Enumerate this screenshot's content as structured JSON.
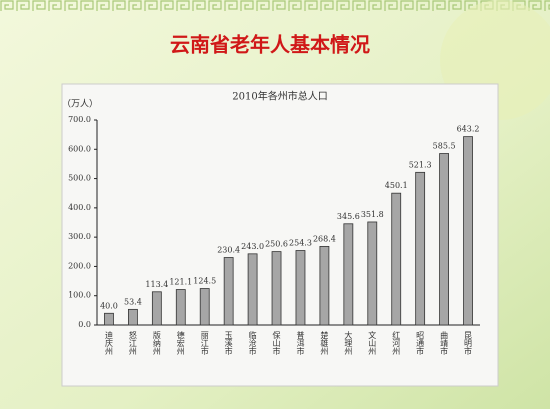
{
  "slide_title": "云南省老年人基本情况",
  "chart_data": {
    "type": "bar",
    "title": "2010年各州市总人口",
    "y_label": "（万人）",
    "categories": [
      "迪庆州",
      "怒江州",
      "版纳州",
      "德宏州",
      "丽江市",
      "玉溪市",
      "临沧市",
      "保山市",
      "普洱市",
      "楚雄州",
      "大理州",
      "文山州",
      "红河州",
      "昭通市",
      "曲靖市",
      "昆明市"
    ],
    "values": [
      40.0,
      53.4,
      113.4,
      121.1,
      124.5,
      230.4,
      243.0,
      250.6,
      254.3,
      268.4,
      345.6,
      351.8,
      450.1,
      521.3,
      585.5,
      643.2
    ],
    "value_labels": [
      "40.0",
      "53.4",
      "113.4",
      "121.1",
      "124.5",
      "230.4",
      "243.0",
      "250.6",
      "254.3",
      "268.4",
      "345.6",
      "351.8",
      "450.1",
      "521.3",
      "585.5",
      "643.2"
    ],
    "color": "#a6a6a6",
    "ylim": [
      0,
      700
    ],
    "yticks": [
      {
        "value": 0,
        "label": "0.0"
      },
      {
        "value": 100,
        "label": "100.0"
      },
      {
        "value": 200,
        "label": "200.0"
      },
      {
        "value": 300,
        "label": "300.0"
      },
      {
        "value": 400,
        "label": "400.0"
      },
      {
        "value": 500,
        "label": "500.0"
      },
      {
        "value": 600,
        "label": "600.0"
      },
      {
        "value": 700,
        "label": "700.0"
      }
    ],
    "grid": false
  }
}
